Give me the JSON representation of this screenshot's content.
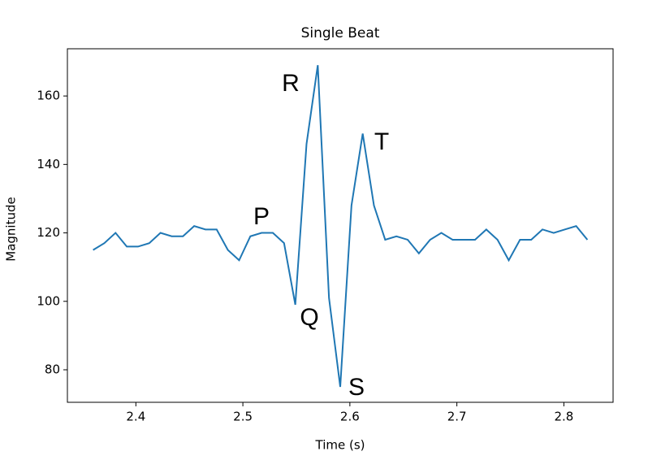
{
  "chart_data": {
    "type": "line",
    "title": "Single Beat",
    "x_label": "Time (s)",
    "y_label": "Magnitude",
    "x": [
      2.36,
      2.3705,
      2.381,
      2.3915,
      2.402,
      2.4125,
      2.423,
      2.4335,
      2.444,
      2.4545,
      2.465,
      2.4755,
      2.486,
      2.4965,
      2.507,
      2.5175,
      2.528,
      2.5385,
      2.549,
      2.5595,
      2.57,
      2.5805,
      2.591,
      2.6015,
      2.612,
      2.6225,
      2.633,
      2.6435,
      2.654,
      2.6645,
      2.675,
      2.6855,
      2.696,
      2.7065,
      2.717,
      2.7275,
      2.738,
      2.7485,
      2.759,
      2.7695,
      2.78,
      2.7905,
      2.801,
      2.8115,
      2.822
    ],
    "values": [
      115,
      117,
      120,
      116,
      116,
      117,
      120,
      119,
      119,
      122,
      121,
      121,
      115,
      112,
      119,
      120,
      120,
      117,
      99,
      146,
      169,
      101,
      75,
      128,
      149,
      128,
      118,
      119,
      118,
      114,
      118,
      120,
      118,
      118,
      118,
      121,
      118,
      112,
      118,
      118,
      121,
      120,
      121,
      122,
      118
    ],
    "color": "#1f77b4",
    "xlim": [
      2.336,
      2.846
    ],
    "ylim": [
      70.5,
      173.8
    ],
    "xticks": [
      2.4,
      2.5,
      2.6,
      2.7,
      2.8
    ],
    "yticks": [
      80,
      100,
      120,
      140,
      160
    ],
    "annotations": [
      "P",
      "R",
      "Q",
      "S",
      "T"
    ]
  }
}
